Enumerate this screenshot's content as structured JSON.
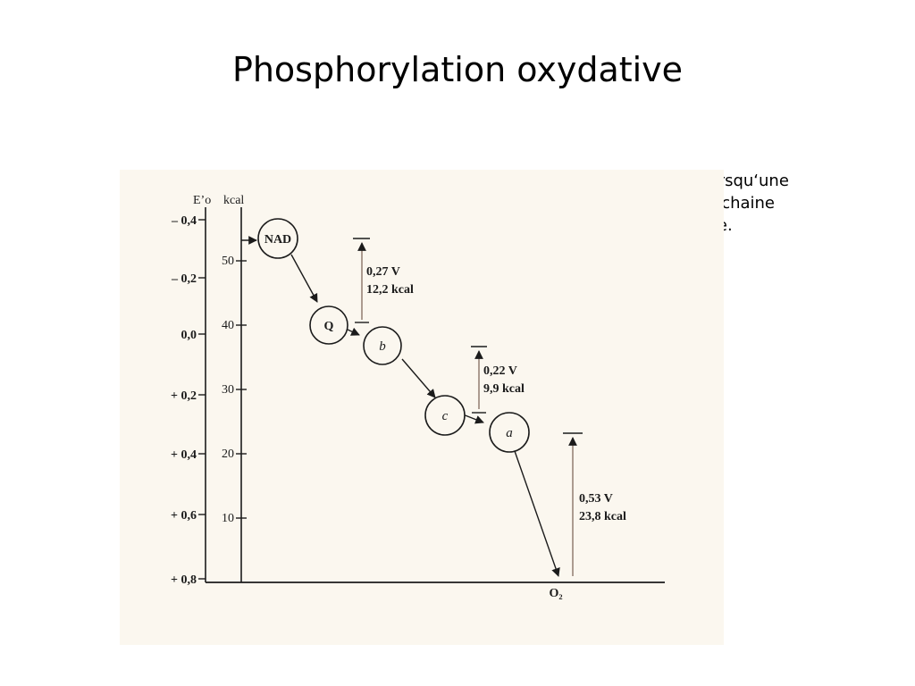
{
  "slide": {
    "title": "Phosphorylation oxydative",
    "caption_lines": [
      "Diminution d’énergie libre lorsqu‘une",
      "paire d’électrons descend la chaine",
      "respiratoire jusqu'à l’oxygène."
    ]
  },
  "figure": {
    "axis_e0_title": "E’o",
    "axis_kcal_title": "kcal",
    "e0_ticks": [
      "– 0,4",
      "– 0,2",
      "0,0",
      "+ 0,2",
      "+ 0,4",
      "+ 0,6",
      "+ 0,8"
    ],
    "kcal_ticks": [
      "50",
      "40",
      "30",
      "20",
      "10"
    ],
    "carriers": [
      "NAD",
      "Q",
      "b",
      "c",
      "a"
    ],
    "terminal_acceptor": "O₂",
    "drops": [
      {
        "volts": "0,27 V",
        "energy": "12,2 kcal"
      },
      {
        "volts": "0,22 V",
        "energy": "9,9 kcal"
      },
      {
        "volts": "0,53 V",
        "energy": "23,8 kcal"
      }
    ],
    "colors": {
      "paper": "#fbf7ef",
      "ink": "#1b1b1b",
      "drop_line": "#8a7468"
    }
  }
}
